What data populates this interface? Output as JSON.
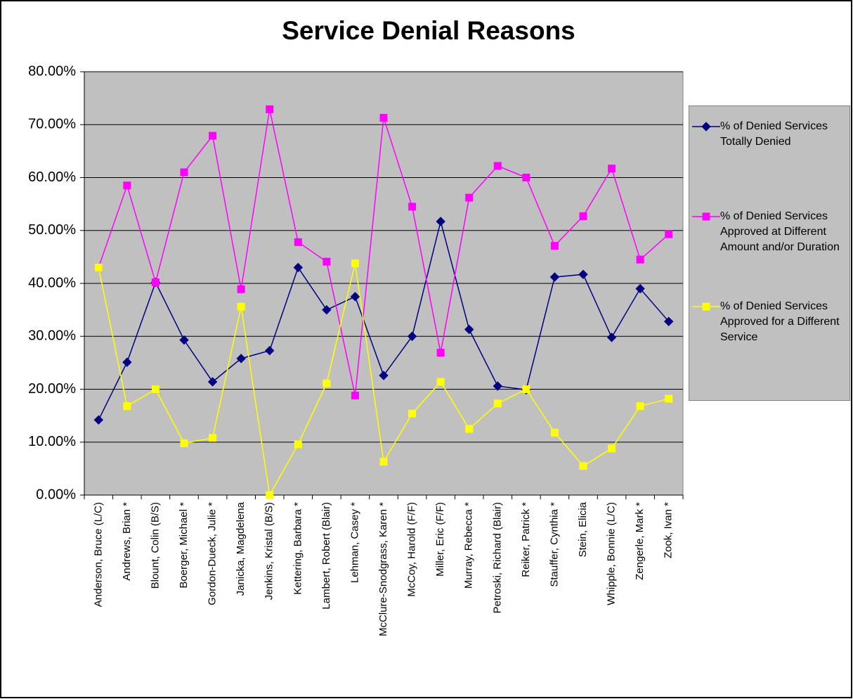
{
  "chart_data": {
    "type": "line",
    "title": "Service Denial Reasons",
    "categories": [
      "Anderson, Bruce (L/C)",
      "Andrews, Brian *",
      "Blount, Colin (B/S)",
      "Boerger, Michael *",
      "Gordon-Dueck, Julie *",
      "Janicka, Magdelena",
      "Jenkins, Kristal (B/S)",
      "Kettering, Barbara *",
      "Lambert, Robert (Blair)",
      "Lehman, Casey *",
      "McClure-Snodgrass, Karen *",
      "McCoy, Harold (F/F)",
      "Miller, Eric (F/F)",
      "Murray, Rebecca *",
      "Petroski, Richard (Blair)",
      "Reiker, Patrick *",
      "Stauffer, Cynthia *",
      "Stein, Elicia",
      "Whipple, Bonnie (L/C)",
      "Zengerle, Mark *",
      "Zook, Ivan *"
    ],
    "series": [
      {
        "name": "% of Denied Services Totally Denied",
        "color": "#000080",
        "marker": "diamond",
        "values": [
          14.2,
          25.1,
          40.2,
          29.3,
          21.4,
          25.8,
          27.3,
          43.0,
          35.0,
          37.5,
          22.6,
          30.0,
          51.7,
          31.3,
          20.6,
          19.9,
          41.2,
          41.7,
          29.8,
          39.0,
          32.8
        ]
      },
      {
        "name": "% of Denied Services Approved at Different Amount and/or Duration",
        "color": "#ff00ff",
        "marker": "square",
        "values": [
          43.0,
          58.5,
          40.2,
          61.0,
          67.9,
          38.9,
          72.9,
          47.8,
          44.1,
          18.8,
          71.3,
          54.5,
          26.9,
          56.2,
          62.2,
          60.0,
          47.1,
          52.7,
          61.7,
          44.5,
          49.3
        ]
      },
      {
        "name": "% of Denied Services Approved for a Different Service",
        "color": "#ffff00",
        "marker": "square",
        "values": [
          43.0,
          16.8,
          20.0,
          9.8,
          10.8,
          35.6,
          0.0,
          9.6,
          21.1,
          43.8,
          6.3,
          15.4,
          21.4,
          12.5,
          17.3,
          20.0,
          11.8,
          5.5,
          8.8,
          16.8,
          18.2
        ]
      }
    ],
    "ylim": [
      0,
      80
    ],
    "yticks": [
      {
        "value": 0,
        "label": "0.00%"
      },
      {
        "value": 10,
        "label": "10.00%"
      },
      {
        "value": 20,
        "label": "20.00%"
      },
      {
        "value": 30,
        "label": "30.00%"
      },
      {
        "value": 40,
        "label": "40.00%"
      },
      {
        "value": 50,
        "label": "50.00%"
      },
      {
        "value": 60,
        "label": "60.00%"
      },
      {
        "value": 70,
        "label": "70.00%"
      },
      {
        "value": 80,
        "label": "80.00%"
      }
    ],
    "grid": true,
    "legend": "right"
  }
}
